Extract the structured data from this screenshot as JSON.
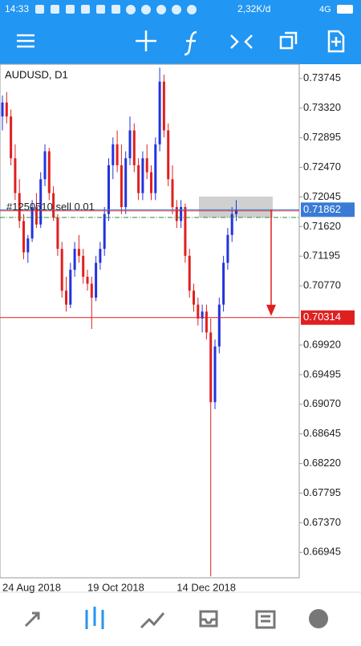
{
  "status_bar": {
    "time": "14:33",
    "speed": "2,32K/d",
    "network": "4G"
  },
  "chart_data": {
    "type": "candlestick",
    "title": "AUDUSD, D1",
    "up_color": "#2233dd",
    "down_color": "#e02020",
    "categories": [
      "24 Aug 2018",
      null,
      null,
      null,
      null,
      null,
      null,
      null,
      null,
      null,
      null,
      null,
      null,
      null,
      null,
      null,
      null,
      null,
      null,
      null,
      "19 Oct 2018",
      null,
      null,
      null,
      null,
      null,
      null,
      null,
      null,
      null,
      null,
      null,
      null,
      null,
      null,
      null,
      null,
      null,
      null,
      null,
      null,
      "14 Dec 2018",
      null,
      null,
      null,
      null,
      null,
      null,
      null,
      null,
      null,
      null,
      null,
      null,
      null,
      null
    ],
    "ohlc": [
      [
        0.732,
        0.735,
        0.73,
        0.734
      ],
      [
        0.734,
        0.7355,
        0.731,
        0.732
      ],
      [
        0.732,
        0.733,
        0.725,
        0.726
      ],
      [
        0.726,
        0.728,
        0.72,
        0.721
      ],
      [
        0.721,
        0.723,
        0.716,
        0.717
      ],
      [
        0.717,
        0.718,
        0.7115,
        0.7125
      ],
      [
        0.7125,
        0.715,
        0.711,
        0.7145
      ],
      [
        0.7145,
        0.72,
        0.714,
        0.719
      ],
      [
        0.719,
        0.721,
        0.716,
        0.7165
      ],
      [
        0.7165,
        0.724,
        0.716,
        0.723
      ],
      [
        0.723,
        0.728,
        0.722,
        0.727
      ],
      [
        0.727,
        0.7275,
        0.72,
        0.721
      ],
      [
        0.721,
        0.722,
        0.717,
        0.7175
      ],
      [
        0.7175,
        0.718,
        0.712,
        0.713
      ],
      [
        0.713,
        0.714,
        0.706,
        0.707
      ],
      [
        0.707,
        0.709,
        0.704,
        0.705
      ],
      [
        0.705,
        0.711,
        0.7045,
        0.71
      ],
      [
        0.71,
        0.714,
        0.709,
        0.713
      ],
      [
        0.713,
        0.715,
        0.711,
        0.712
      ],
      [
        0.712,
        0.713,
        0.708,
        0.709
      ],
      [
        0.709,
        0.71,
        0.707,
        0.708
      ],
      [
        0.708,
        0.709,
        0.7015,
        0.706
      ],
      [
        0.706,
        0.712,
        0.7055,
        0.711
      ],
      [
        0.711,
        0.714,
        0.71,
        0.713
      ],
      [
        0.713,
        0.719,
        0.712,
        0.718
      ],
      [
        0.718,
        0.726,
        0.717,
        0.725
      ],
      [
        0.725,
        0.729,
        0.723,
        0.728
      ],
      [
        0.728,
        0.73,
        0.724,
        0.725
      ],
      [
        0.725,
        0.728,
        0.718,
        0.719
      ],
      [
        0.719,
        0.727,
        0.718,
        0.726
      ],
      [
        0.726,
        0.732,
        0.725,
        0.73
      ],
      [
        0.73,
        0.731,
        0.724,
        0.725
      ],
      [
        0.725,
        0.726,
        0.72,
        0.721
      ],
      [
        0.721,
        0.727,
        0.72,
        0.726
      ],
      [
        0.726,
        0.728,
        0.723,
        0.724
      ],
      [
        0.724,
        0.725,
        0.72,
        0.721
      ],
      [
        0.721,
        0.729,
        0.72,
        0.728
      ],
      [
        0.728,
        0.739,
        0.727,
        0.737
      ],
      [
        0.737,
        0.738,
        0.729,
        0.73
      ],
      [
        0.73,
        0.731,
        0.722,
        0.723
      ],
      [
        0.723,
        0.725,
        0.718,
        0.719
      ],
      [
        0.719,
        0.72,
        0.716,
        0.717
      ],
      [
        0.717,
        0.72,
        0.716,
        0.719
      ],
      [
        0.719,
        0.7195,
        0.711,
        0.712
      ],
      [
        0.712,
        0.713,
        0.706,
        0.707
      ],
      [
        0.707,
        0.708,
        0.704,
        0.705
      ],
      [
        0.705,
        0.706,
        0.702,
        0.703
      ],
      [
        0.703,
        0.705,
        0.701,
        0.704
      ],
      [
        0.704,
        0.705,
        0.7,
        0.701
      ],
      [
        0.701,
        0.703,
        0.666,
        0.691
      ],
      [
        0.691,
        0.7,
        0.69,
        0.699
      ],
      [
        0.699,
        0.706,
        0.698,
        0.705
      ],
      [
        0.705,
        0.712,
        0.704,
        0.711
      ],
      [
        0.711,
        0.716,
        0.71,
        0.715
      ],
      [
        0.715,
        0.719,
        0.714,
        0.718
      ],
      [
        0.718,
        0.72,
        0.717,
        0.7186
      ]
    ],
    "ylim": [
      0.6658,
      0.7395
    ],
    "yticks": [
      0.73745,
      {
        "value": 0.7332,
        "label": "0.73320"
      },
      0.72895,
      {
        "value": 0.7247,
        "label": "0.72470"
      },
      0.72045,
      {
        "value": 0.7162,
        "label": "0.71620"
      },
      0.71195,
      {
        "value": 0.7077,
        "label": "0.70770"
      },
      {
        "value": 0.6992,
        "label": "0.69920"
      },
      0.69495,
      {
        "value": 0.6907,
        "label": "0.69070"
      },
      0.68645,
      {
        "value": 0.6822,
        "label": "0.68220"
      },
      0.67795,
      {
        "value": 0.6737,
        "label": "0.67370"
      },
      0.66945
    ],
    "order": {
      "label": "#1250510 sell 0.01",
      "price": 0.71862,
      "color": "#3a7bd5"
    },
    "target": {
      "price": 0.70314,
      "color": "#e02020"
    },
    "level": {
      "price": 0.7175,
      "color": "#2e8b3d"
    },
    "zone": {
      "top": 0.7205,
      "bottom": 0.7175
    }
  }
}
